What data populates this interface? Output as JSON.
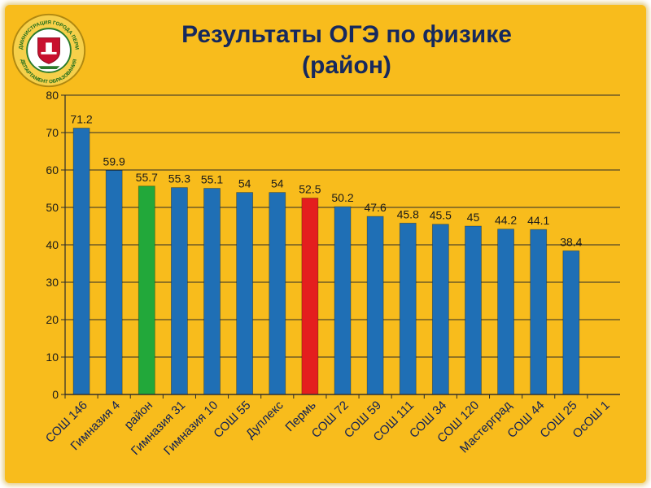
{
  "header": {
    "title_line1": "Результаты ОГЭ по физике",
    "title_line2": "(район)",
    "emblem_icon": "city-administration-emblem-icon",
    "emblem_text_top": "АДМИНИСТРАЦИЯ ГОРОДА ПЕРМИ",
    "emblem_text_bottom": "ДЕПАРТАМЕНТ ОБРАЗОВАНИЯ"
  },
  "colors": {
    "background": "#f8bc1c",
    "title": "#16295e",
    "bar_default": "#1f6fb5",
    "bar_district": "#22a83a",
    "bar_city": "#e41e1e"
  },
  "chart_data": {
    "type": "bar",
    "title": "Результаты ОГЭ по физике (район)",
    "xlabel": "",
    "ylabel": "",
    "ylim": [
      0,
      80
    ],
    "yticks": [
      0,
      10,
      20,
      30,
      40,
      50,
      60,
      70,
      80
    ],
    "grid": true,
    "legend": "none",
    "categories": [
      "СОШ 146",
      "Гимназия 4",
      "район",
      "Гимназия 31",
      "Гимназия 10",
      "СОШ 55",
      "Дуплекс",
      "Пермь",
      "СОШ 72",
      "СОШ 59",
      "СОШ 111",
      "СОШ 34",
      "СОШ 120",
      "Мастерград",
      "СОШ 44",
      "СОШ 25",
      "ОсОШ 1"
    ],
    "values": [
      71.2,
      59.9,
      55.7,
      55.3,
      55.1,
      54,
      54,
      52.5,
      50.2,
      47.6,
      45.8,
      45.5,
      45,
      44.2,
      44.1,
      38.4,
      null
    ],
    "labels": [
      "71.2",
      "59.9",
      "55.7",
      "55.3",
      "55.1",
      "54",
      "54",
      "52.5",
      "50.2",
      "47.6",
      "45.8",
      "45.5",
      "45",
      "44.2",
      "44.1",
      "38.4",
      ""
    ],
    "bar_colors": [
      "#1f6fb5",
      "#1f6fb5",
      "#22a83a",
      "#1f6fb5",
      "#1f6fb5",
      "#1f6fb5",
      "#1f6fb5",
      "#e41e1e",
      "#1f6fb5",
      "#1f6fb5",
      "#1f6fb5",
      "#1f6fb5",
      "#1f6fb5",
      "#1f6fb5",
      "#1f6fb5",
      "#1f6fb5",
      "#1f6fb5"
    ]
  }
}
